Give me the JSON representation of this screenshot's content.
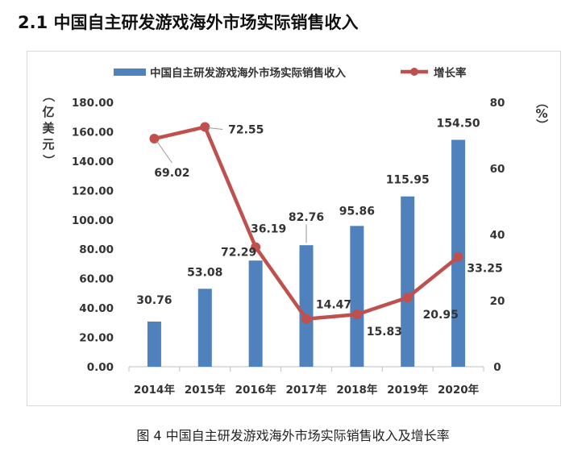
{
  "header": {
    "title": "2.1 中国自主研发游戏海外市场实际销售收入"
  },
  "caption": "图 4  中国自主研发游戏海外市场实际销售收入及增长率",
  "chart_data": {
    "type": "bar+line",
    "categories": [
      "2014年",
      "2015年",
      "2016年",
      "2017年",
      "2018年",
      "2019年",
      "2020年"
    ],
    "series": [
      {
        "name": "中国自主研发游戏海外市场实际销售收入",
        "type": "bar",
        "axis": "left",
        "values": [
          30.76,
          53.08,
          72.29,
          82.76,
          95.86,
          115.95,
          154.5
        ],
        "labels": [
          "30.76",
          "53.08",
          "72.29",
          "82.76",
          "95.86",
          "115.95",
          "154.50"
        ],
        "color": "#4f81bd"
      },
      {
        "name": "增长率",
        "type": "line",
        "axis": "right",
        "values": [
          69.02,
          72.55,
          36.19,
          14.47,
          15.83,
          20.95,
          33.25
        ],
        "labels": [
          "69.02",
          "72.55",
          "36.19",
          "14.47",
          "15.83",
          "20.95",
          "33.25"
        ],
        "color": "#c0504d"
      }
    ],
    "y_left": {
      "label": "（亿美元）",
      "min": 0,
      "max": 180,
      "step": 20,
      "ticks": [
        "0.00",
        "20.00",
        "40.00",
        "60.00",
        "80.00",
        "100.00",
        "120.00",
        "140.00",
        "160.00",
        "180.00"
      ]
    },
    "y_right": {
      "label": "（%）",
      "min": 0,
      "max": 80,
      "step": 20,
      "ticks": [
        "0",
        "20",
        "40",
        "60",
        "80"
      ]
    },
    "legend": "top",
    "grid": false
  }
}
